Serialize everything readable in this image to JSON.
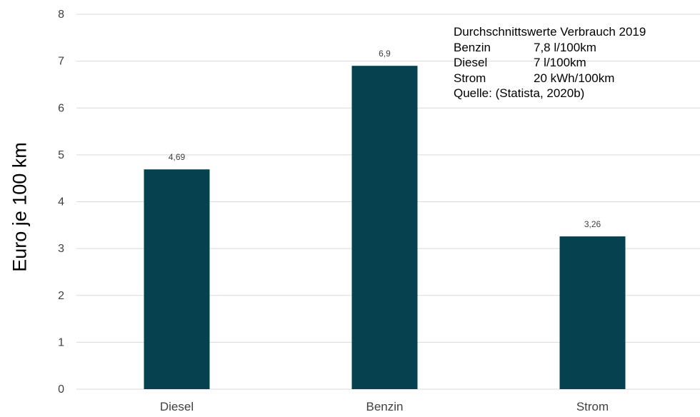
{
  "chart_data": {
    "type": "bar",
    "categories": [
      "Diesel",
      "Benzin",
      "Strom"
    ],
    "values": [
      4.69,
      6.9,
      3.26
    ],
    "value_labels": [
      "4,69",
      "6,9",
      "3,26"
    ],
    "title": "",
    "xlabel": "",
    "ylabel": "Euro je 100 km",
    "ylim": [
      0,
      8
    ],
    "yticks": [
      0,
      1,
      2,
      3,
      4,
      5,
      6,
      7,
      8
    ],
    "grid": true,
    "bar_color": "#064150",
    "grid_color": "#d9d9d9",
    "annotation": {
      "title": "Durchschnittswerte Verbrauch 2019",
      "rows": [
        {
          "key": "Benzin",
          "value": "7,8 l/100km"
        },
        {
          "key": "Diesel",
          "value": "7 l/100km"
        },
        {
          "key": "Strom",
          "value": "20 kWh/100km"
        }
      ],
      "source": "Quelle: (Statista, 2020b)"
    }
  }
}
